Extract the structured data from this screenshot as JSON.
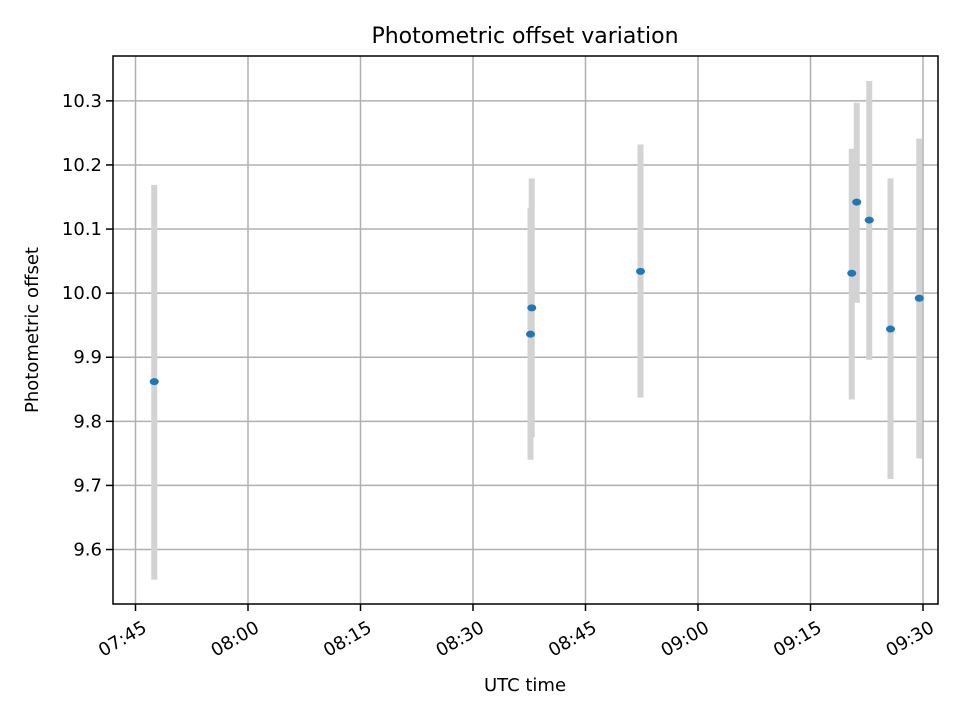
{
  "chart_data": {
    "type": "scatter",
    "title": "Photometric offset variation",
    "xlabel": "UTC time",
    "ylabel": "Photometric offset",
    "x_unit": "UTC HH:MM",
    "xlim": [
      "07:42",
      "09:32"
    ],
    "ylim": [
      9.515,
      10.37
    ],
    "x_ticks": [
      "07:45",
      "08:00",
      "08:15",
      "08:30",
      "08:45",
      "09:00",
      "09:15",
      "09:30"
    ],
    "y_ticks": [
      9.6,
      9.7,
      9.8,
      9.9,
      10.0,
      10.1,
      10.2,
      10.3
    ],
    "y_tick_labels": [
      "9.6",
      "9.7",
      "9.8",
      "9.9",
      "10.0",
      "10.1",
      "10.2",
      "10.3"
    ],
    "grid": true,
    "colors": {
      "points": "#1f77b4",
      "errorbars": "#d3d3d3"
    },
    "points": [
      {
        "x": "07:47:30",
        "y": 9.862,
        "ylow": 9.553,
        "yhigh": 10.169
      },
      {
        "x": "08:37:40",
        "y": 9.936,
        "ylow": 9.74,
        "yhigh": 10.133
      },
      {
        "x": "08:37:50",
        "y": 9.977,
        "ylow": 9.775,
        "yhigh": 10.179
      },
      {
        "x": "08:52:20",
        "y": 10.034,
        "ylow": 9.837,
        "yhigh": 10.232
      },
      {
        "x": "09:20:30",
        "y": 10.031,
        "ylow": 9.834,
        "yhigh": 10.225
      },
      {
        "x": "09:21:10",
        "y": 10.142,
        "ylow": 9.985,
        "yhigh": 10.297
      },
      {
        "x": "09:22:50",
        "y": 10.114,
        "ylow": 9.896,
        "yhigh": 10.331
      },
      {
        "x": "09:25:40",
        "y": 9.944,
        "ylow": 9.71,
        "yhigh": 10.179
      },
      {
        "x": "09:29:30",
        "y": 9.992,
        "ylow": 9.742,
        "yhigh": 10.241
      }
    ]
  }
}
